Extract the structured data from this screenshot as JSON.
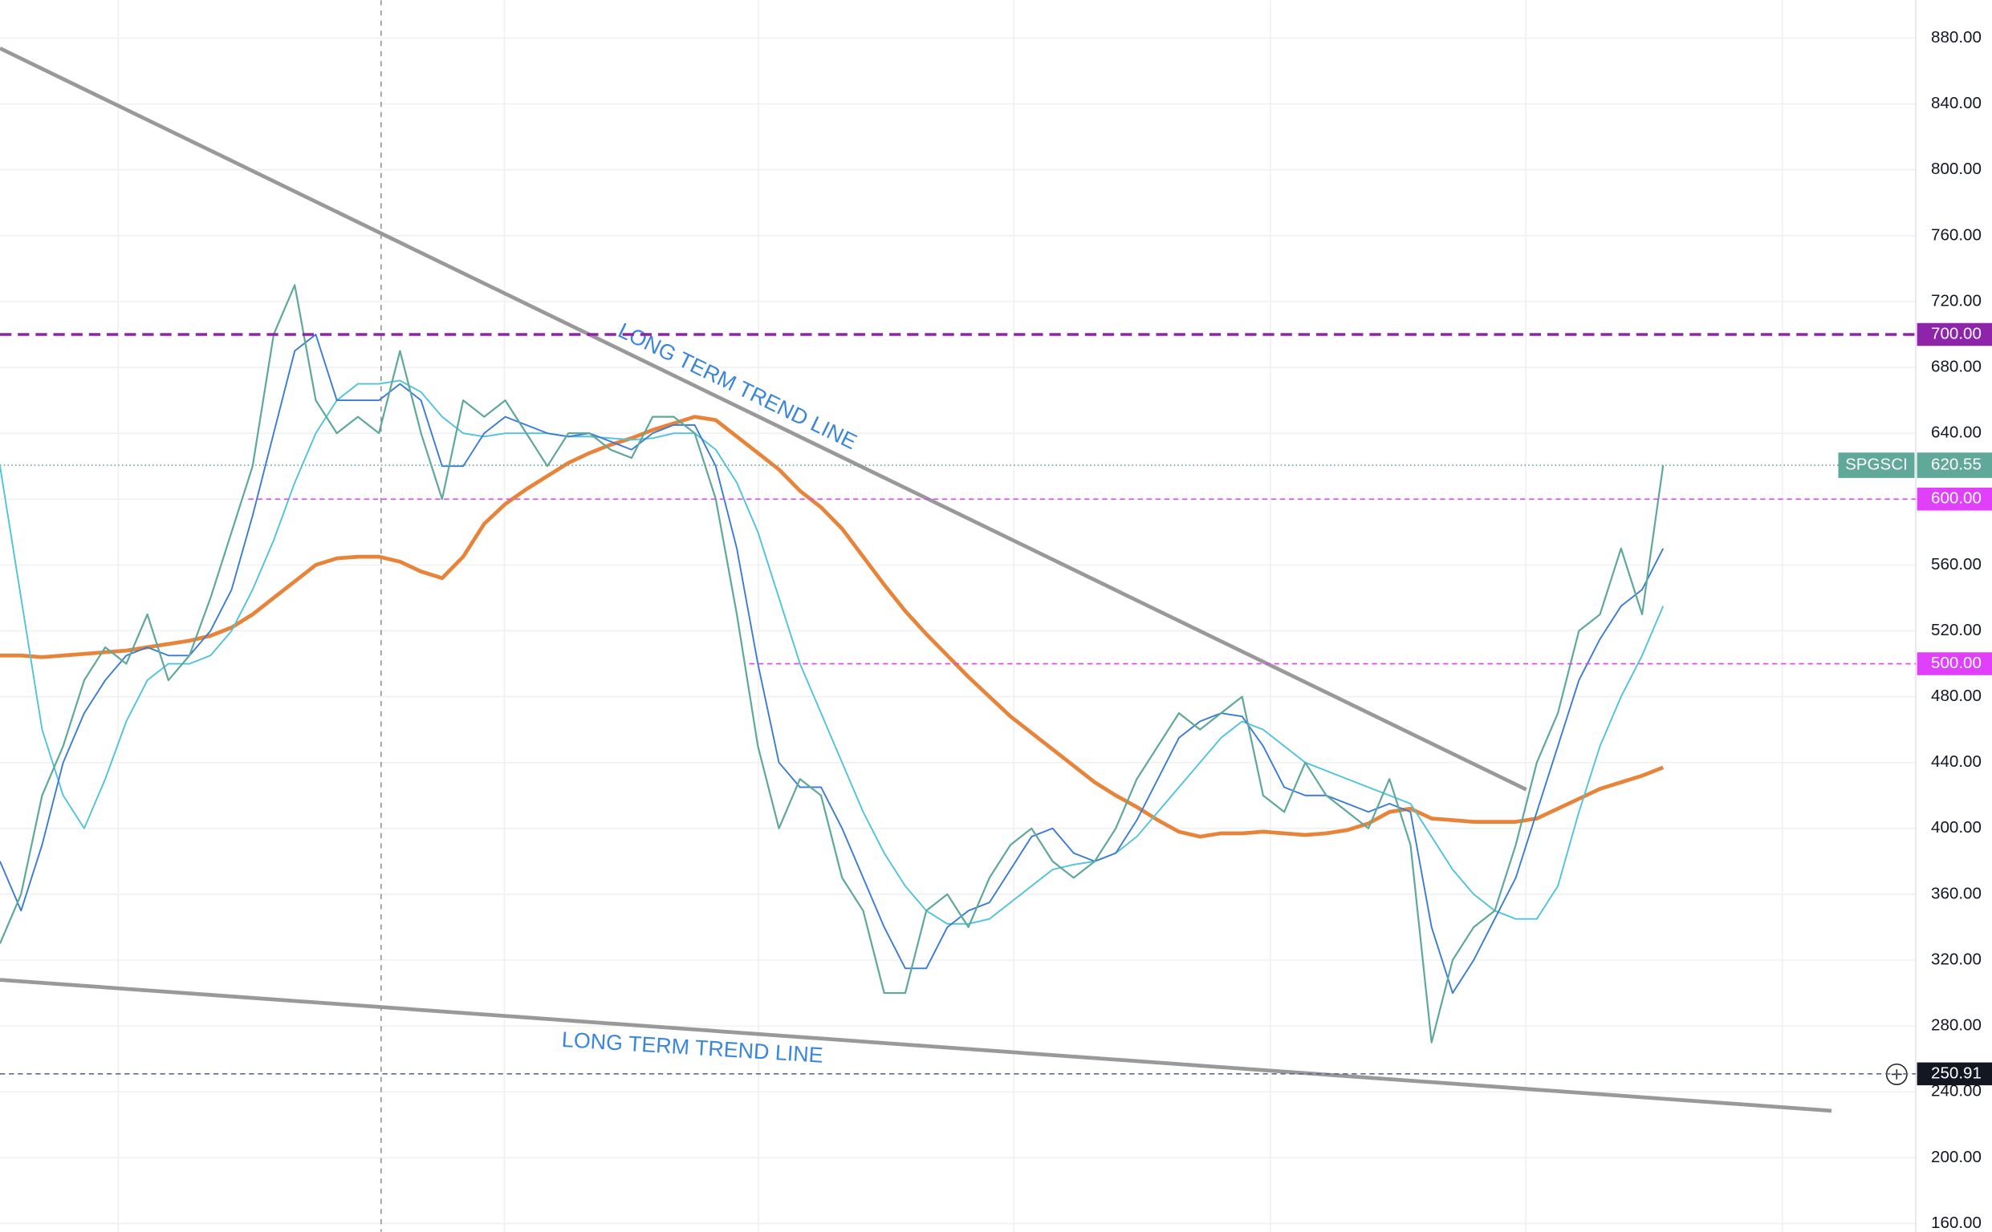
{
  "chart_data": {
    "type": "line",
    "ylim": [
      155,
      903
    ],
    "xlim": [
      0,
      91
    ],
    "grid": true,
    "yticks": [
      {
        "value": 160,
        "label": "160.00"
      },
      {
        "value": 200,
        "label": "200.00"
      },
      {
        "value": 240,
        "label": "240.00"
      },
      {
        "value": 280,
        "label": "280.00"
      },
      {
        "value": 320,
        "label": "320.00"
      },
      {
        "value": 360,
        "label": "360.00"
      },
      {
        "value": 400,
        "label": "400.00"
      },
      {
        "value": 440,
        "label": "440.00"
      },
      {
        "value": 480,
        "label": "480.00"
      },
      {
        "value": 520,
        "label": "520.00"
      },
      {
        "value": 560,
        "label": "560.00"
      },
      {
        "value": 600,
        "label": "600.00"
      },
      {
        "value": 640,
        "label": "640.00"
      },
      {
        "value": 680,
        "label": "680.00"
      },
      {
        "value": 720,
        "label": "720.00"
      },
      {
        "value": 760,
        "label": "760.00"
      },
      {
        "value": 800,
        "label": "800.00"
      },
      {
        "value": 840,
        "label": "840.00"
      },
      {
        "value": 880,
        "label": "880.00"
      }
    ],
    "series": [
      {
        "name": "SPGSCI",
        "color": "#5fa89a",
        "width": 1.4,
        "values": [
          330,
          360,
          420,
          450,
          490,
          510,
          500,
          530,
          490,
          505,
          540,
          580,
          620,
          700,
          730,
          660,
          640,
          650,
          640,
          690,
          640,
          600,
          660,
          650,
          660,
          640,
          620,
          640,
          640,
          630,
          625,
          650,
          650,
          640,
          600,
          530,
          450,
          400,
          430,
          420,
          370,
          350,
          300,
          300,
          350,
          360,
          340,
          370,
          390,
          400,
          380,
          370,
          380,
          400,
          430,
          450,
          470,
          460,
          470,
          480,
          420,
          410,
          440,
          420,
          410,
          400,
          430,
          390,
          270,
          320,
          340,
          350,
          390,
          440,
          470,
          520,
          530,
          570,
          530,
          620.55
        ],
        "last_label": "620.55"
      },
      {
        "color": "#3a7bd5",
        "width": 1.2,
        "values": [
          380,
          350,
          390,
          440,
          470,
          490,
          505,
          510,
          505,
          505,
          520,
          545,
          590,
          640,
          690,
          700,
          660,
          660,
          660,
          670,
          660,
          620,
          620,
          640,
          650,
          645,
          640,
          638,
          640,
          635,
          630,
          640,
          645,
          645,
          620,
          570,
          500,
          440,
          425,
          425,
          400,
          370,
          340,
          315,
          315,
          340,
          350,
          355,
          375,
          395,
          400,
          385,
          380,
          385,
          405,
          430,
          455,
          465,
          470,
          468,
          450,
          425,
          420,
          420,
          415,
          410,
          415,
          410,
          340,
          300,
          320,
          345,
          370,
          410,
          450,
          490,
          515,
          535,
          545,
          570
        ]
      },
      {
        "color": "#4fc3d9",
        "width": 1.2,
        "values": [
          620,
          540,
          460,
          420,
          400,
          430,
          465,
          490,
          500,
          500,
          505,
          520,
          545,
          575,
          610,
          640,
          660,
          670,
          670,
          672,
          665,
          650,
          640,
          638,
          640,
          640,
          640,
          638,
          638,
          637,
          636,
          637,
          640,
          640,
          630,
          610,
          580,
          540,
          500,
          470,
          440,
          410,
          385,
          365,
          350,
          342,
          342,
          345,
          355,
          365,
          375,
          378,
          380,
          385,
          395,
          410,
          425,
          440,
          455,
          465,
          460,
          450,
          440,
          435,
          430,
          425,
          420,
          415,
          395,
          375,
          360,
          350,
          345,
          345,
          365,
          410,
          450,
          480,
          505,
          535
        ]
      },
      {
        "color": "#e8843a",
        "width": 3,
        "values": [
          505,
          505,
          504,
          505,
          506,
          507,
          508,
          510,
          512,
          514,
          517,
          522,
          530,
          540,
          550,
          560,
          564,
          565,
          565,
          562,
          556,
          552,
          565,
          585,
          597,
          606,
          614,
          622,
          628,
          633,
          637,
          642,
          646,
          650,
          648,
          638,
          628,
          618,
          605,
          595,
          582,
          565,
          548,
          532,
          518,
          505,
          492,
          480,
          468,
          458,
          448,
          438,
          428,
          420,
          413,
          405,
          398,
          395,
          397,
          397,
          398,
          397,
          396,
          397,
          399,
          403,
          410,
          412,
          406,
          405,
          404,
          404,
          404,
          406,
          412,
          418,
          424,
          428,
          432,
          437
        ]
      }
    ],
    "levels": [
      {
        "value": 700,
        "label": "700.00",
        "color": "#8e24aa",
        "start": 0
      },
      {
        "value": 600,
        "label": "600.00",
        "color": "#e040fb",
        "start": 11.8
      },
      {
        "value": 500,
        "label": "500.00",
        "color": "#e040fb",
        "start": 35.6
      },
      {
        "value": 250.91,
        "label": "250.91",
        "color": "#5c6b8a",
        "start": 0
      }
    ],
    "trend_lines": [
      {
        "x": [
          0,
          72.5
        ],
        "y": [
          873.8,
          423.6
        ],
        "color": "#999999"
      },
      {
        "x": [
          0,
          87
        ],
        "y": [
          308,
          228.5
        ],
        "color": "#999999"
      }
    ],
    "annotations": [
      "LONG TERM TREND LINE",
      "LONG TERM TREND LINE"
    ]
  }
}
